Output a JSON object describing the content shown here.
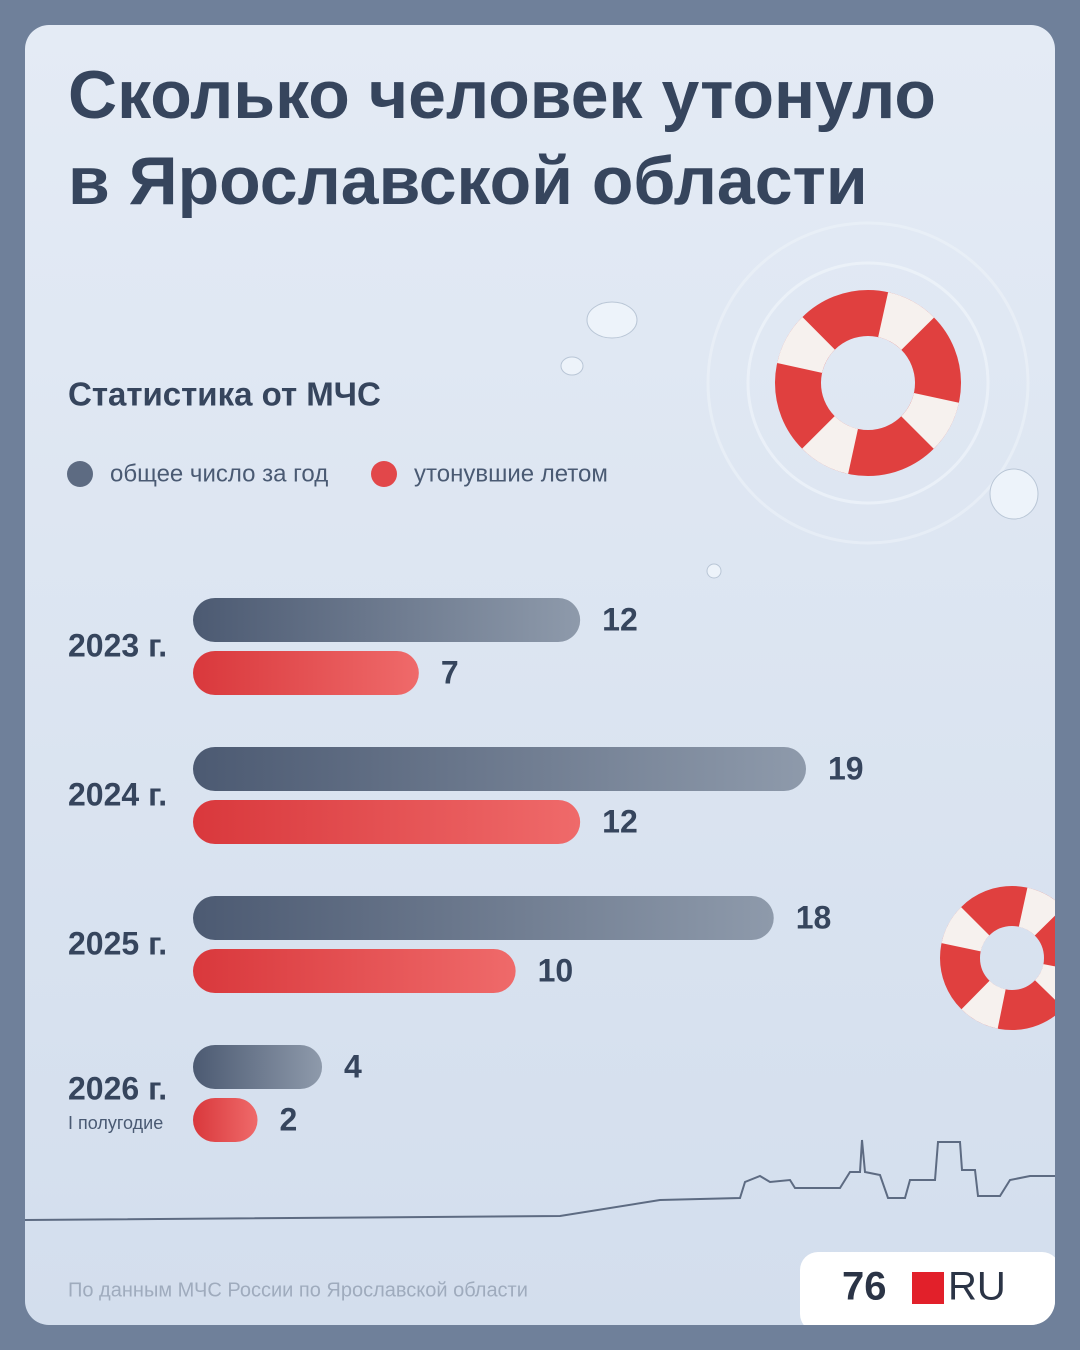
{
  "title": "Сколько человек утонуло в Ярославской области",
  "subtitle": "Статистика от МЧС",
  "source": "По данным МЧС России по Ярославской области",
  "logo": {
    "left": "76",
    "right": "RU"
  },
  "chart_data": {
    "type": "hbar",
    "categories": [
      "2023 г.",
      "2024 г.",
      "2025 г.",
      "2026 г."
    ],
    "category_notes": [
      null,
      null,
      null,
      "I полугодие"
    ],
    "series": [
      {
        "name": "общее число за год",
        "color": "#5d6b82",
        "values": [
          12,
          19,
          18,
          4
        ]
      },
      {
        "name": "утонувшие летом",
        "color": "#e2474a",
        "values": [
          7,
          12,
          10,
          2
        ]
      }
    ]
  }
}
